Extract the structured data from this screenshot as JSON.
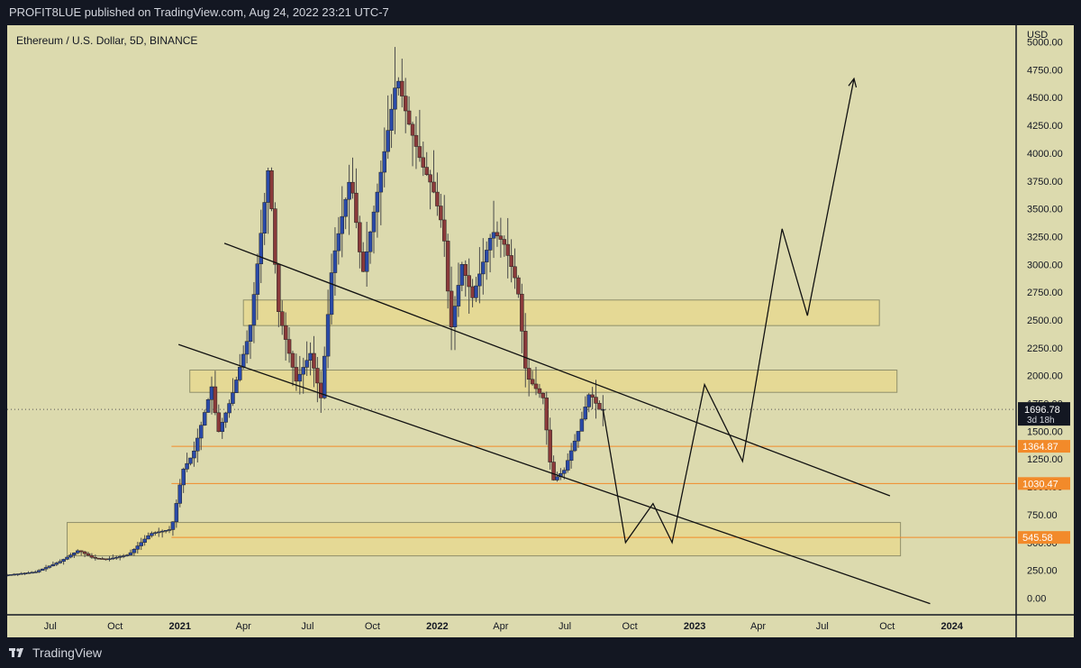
{
  "header": {
    "publisher_line": "PROFIT8LUE published on TradingView.com, Aug 24, 2022 23:21 UTC-7"
  },
  "legend": {
    "symbol_line": "Ethereum / U.S. Dollar, 5D, BINANCE"
  },
  "footer": {
    "brand": "TradingView",
    "logo_icon": "tradingview-logo-icon"
  },
  "colors": {
    "background": "#dcdaae",
    "frame": "#131722",
    "up_candle": "#2a4aa8",
    "down_candle": "#8a3a3a",
    "zone_fill": "#e8d88c",
    "level_line": "#f28a2a",
    "label_bg": "#f28a2a",
    "price_label_bg": "#131722"
  },
  "chart_data": {
    "type": "candlestick",
    "symbol": "Ethereum / U.S. Dollar",
    "interval": "5D",
    "exchange": "BINANCE",
    "y_axis": {
      "label": "USD",
      "ylim": [
        -150,
        5150
      ],
      "ticks": [
        "0.00",
        "250.00",
        "500.00",
        "750.00",
        "1000.00",
        "1250.00",
        "1500.00",
        "1750.00",
        "2000.00",
        "2250.00",
        "2500.00",
        "2750.00",
        "3000.00",
        "3250.00",
        "3500.00",
        "3750.00",
        "4000.00",
        "4250.00",
        "4500.00",
        "4750.00",
        "5000.00"
      ]
    },
    "x_axis": {
      "range": [
        "2020-05-01",
        "2024-04-01"
      ],
      "ticks": [
        {
          "label": "Jul",
          "date": "2020-07-01",
          "bold": false
        },
        {
          "label": "Oct",
          "date": "2020-10-01",
          "bold": false
        },
        {
          "label": "2021",
          "date": "2021-01-01",
          "bold": true
        },
        {
          "label": "Apr",
          "date": "2021-04-01",
          "bold": false
        },
        {
          "label": "Jul",
          "date": "2021-07-01",
          "bold": false
        },
        {
          "label": "Oct",
          "date": "2021-10-01",
          "bold": false
        },
        {
          "label": "2022",
          "date": "2022-01-01",
          "bold": true
        },
        {
          "label": "Apr",
          "date": "2022-04-01",
          "bold": false
        },
        {
          "label": "Jul",
          "date": "2022-07-01",
          "bold": false
        },
        {
          "label": "Oct",
          "date": "2022-10-01",
          "bold": false
        },
        {
          "label": "2023",
          "date": "2023-01-01",
          "bold": true
        },
        {
          "label": "Apr",
          "date": "2023-04-01",
          "bold": false
        },
        {
          "label": "Jul",
          "date": "2023-07-01",
          "bold": false
        },
        {
          "label": "Oct",
          "date": "2023-10-01",
          "bold": false
        },
        {
          "label": "2024",
          "date": "2024-01-01",
          "bold": true
        }
      ]
    },
    "price_path": [
      [
        "2020-05-01",
        205
      ],
      [
        "2020-06-15",
        235
      ],
      [
        "2020-07-20",
        330
      ],
      [
        "2020-08-15",
        430
      ],
      [
        "2020-09-05",
        360
      ],
      [
        "2020-09-25",
        350
      ],
      [
        "2020-10-25",
        390
      ],
      [
        "2020-11-25",
        580
      ],
      [
        "2020-12-25",
        620
      ],
      [
        "2021-01-10",
        1150
      ],
      [
        "2021-01-25",
        1300
      ],
      [
        "2021-02-20",
        1900
      ],
      [
        "2021-03-01",
        1480
      ],
      [
        "2021-03-20",
        1800
      ],
      [
        "2021-04-15",
        2400
      ],
      [
        "2021-05-05",
        3500
      ],
      [
        "2021-05-12",
        3900
      ],
      [
        "2021-05-25",
        2600
      ],
      [
        "2021-06-20",
        1950
      ],
      [
        "2021-07-10",
        2200
      ],
      [
        "2021-07-25",
        1800
      ],
      [
        "2021-08-10",
        3000
      ],
      [
        "2021-09-05",
        3800
      ],
      [
        "2021-09-22",
        2900
      ],
      [
        "2021-10-20",
        3900
      ],
      [
        "2021-11-10",
        4700
      ],
      [
        "2021-11-25",
        4300
      ],
      [
        "2021-12-15",
        3900
      ],
      [
        "2021-12-30",
        3700
      ],
      [
        "2022-01-15",
        3300
      ],
      [
        "2022-01-25",
        2400
      ],
      [
        "2022-02-10",
        3000
      ],
      [
        "2022-02-25",
        2700
      ],
      [
        "2022-03-25",
        3300
      ],
      [
        "2022-04-10",
        3200
      ],
      [
        "2022-04-30",
        2800
      ],
      [
        "2022-05-12",
        2000
      ],
      [
        "2022-06-05",
        1800
      ],
      [
        "2022-06-18",
        1050
      ],
      [
        "2022-07-05",
        1150
      ],
      [
        "2022-07-25",
        1500
      ],
      [
        "2022-08-10",
        1850
      ],
      [
        "2022-08-24",
        1696.78
      ]
    ],
    "current_price": {
      "value": "1696.78",
      "countdown": "3d 18h"
    },
    "levels": [
      {
        "price": 1364.87,
        "label": "1364.87"
      },
      {
        "price": 1030.47,
        "label": "1030.47"
      },
      {
        "price": 545.58,
        "label": "545.58"
      }
    ],
    "zones": [
      {
        "from": "2021-04-01",
        "to": "2023-09-20",
        "low": 2450,
        "high": 2680
      },
      {
        "from": "2021-01-15",
        "to": "2023-10-15",
        "low": 1850,
        "high": 2050
      },
      {
        "from": "2020-07-25",
        "to": "2023-10-20",
        "low": 380,
        "high": 680
      }
    ],
    "trendlines": [
      {
        "from": [
          "2021-03-05",
          3190
        ],
        "to": [
          "2023-10-05",
          920
        ]
      },
      {
        "from": [
          "2020-12-30",
          2280
        ],
        "to": [
          "2023-12-01",
          -50
        ]
      }
    ],
    "projection": [
      [
        "2022-08-24",
        1696.78
      ],
      [
        "2022-09-25",
        500
      ],
      [
        "2022-11-03",
        850
      ],
      [
        "2022-11-30",
        500
      ],
      [
        "2023-01-15",
        1920
      ],
      [
        "2023-03-10",
        1230
      ],
      [
        "2023-05-05",
        3320
      ],
      [
        "2023-06-10",
        2540
      ],
      [
        "2023-08-15",
        4670
      ]
    ]
  }
}
